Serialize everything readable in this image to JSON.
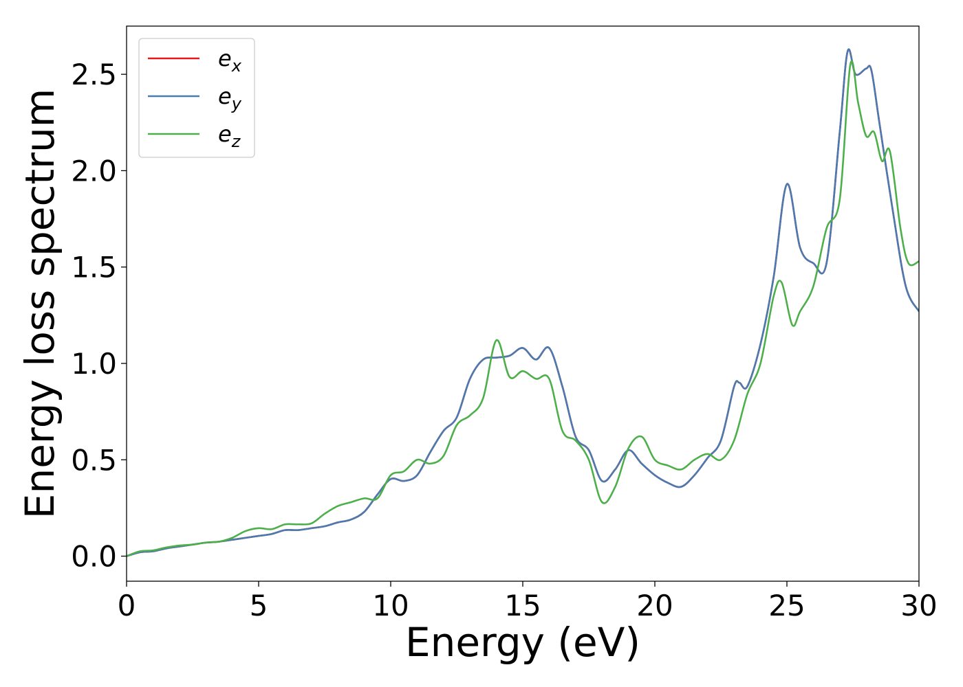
{
  "chart_data": {
    "type": "line",
    "title": "",
    "xlabel": "Energy (eV)",
    "ylabel": "Energy loss spectrum",
    "xlim": [
      0,
      30
    ],
    "ylim": [
      -0.13,
      2.75
    ],
    "xticks": [
      0,
      5,
      10,
      15,
      20,
      25,
      30
    ],
    "xtick_labels": [
      "0",
      "5",
      "10",
      "15",
      "20",
      "25",
      "30"
    ],
    "yticks": [
      0.0,
      0.5,
      1.0,
      1.5,
      2.0,
      2.5
    ],
    "ytick_labels": [
      "0.0",
      "0.5",
      "1.0",
      "1.5",
      "2.0",
      "2.5"
    ],
    "grid": false,
    "legend_position": "top-left",
    "series": [
      {
        "name": "e",
        "subscript": "x",
        "color": "#e41a1c",
        "x": [
          0,
          0.5,
          1,
          1.5,
          2,
          2.5,
          3,
          3.5,
          4,
          4.5,
          5,
          5.5,
          6,
          6.5,
          7,
          7.5,
          8,
          8.5,
          9,
          9.5,
          10,
          10.5,
          11,
          11.5,
          12,
          12.5,
          13,
          13.5,
          14,
          14.5,
          15,
          15.5,
          16,
          16.5,
          17,
          17.5,
          18,
          18.5,
          19,
          19.5,
          20,
          20.5,
          21,
          21.5,
          22,
          22.5,
          23,
          23.2,
          23.5,
          24,
          24.5,
          25,
          25.5,
          26,
          26.5,
          27,
          27.3,
          27.6,
          28,
          28.2,
          28.5,
          29,
          29.5,
          30
        ],
        "y": [
          0,
          0.02,
          0.025,
          0.04,
          0.05,
          0.06,
          0.07,
          0.075,
          0.085,
          0.095,
          0.105,
          0.115,
          0.135,
          0.135,
          0.145,
          0.155,
          0.175,
          0.19,
          0.23,
          0.32,
          0.4,
          0.39,
          0.42,
          0.54,
          0.65,
          0.72,
          0.92,
          1.02,
          1.03,
          1.04,
          1.08,
          1.02,
          1.08,
          0.88,
          0.62,
          0.55,
          0.39,
          0.45,
          0.55,
          0.48,
          0.42,
          0.38,
          0.36,
          0.42,
          0.51,
          0.6,
          0.88,
          0.9,
          0.88,
          1.1,
          1.45,
          1.93,
          1.6,
          1.52,
          1.52,
          2.2,
          2.62,
          2.5,
          2.53,
          2.52,
          2.25,
          1.8,
          1.4,
          1.27
        ]
      },
      {
        "name": "e",
        "subscript": "y",
        "color": "#4a7ab0",
        "x": [
          0,
          0.5,
          1,
          1.5,
          2,
          2.5,
          3,
          3.5,
          4,
          4.5,
          5,
          5.5,
          6,
          6.5,
          7,
          7.5,
          8,
          8.5,
          9,
          9.5,
          10,
          10.5,
          11,
          11.5,
          12,
          12.5,
          13,
          13.5,
          14,
          14.5,
          15,
          15.5,
          16,
          16.5,
          17,
          17.5,
          18,
          18.5,
          19,
          19.5,
          20,
          20.5,
          21,
          21.5,
          22,
          22.5,
          23,
          23.2,
          23.5,
          24,
          24.5,
          25,
          25.5,
          26,
          26.5,
          27,
          27.3,
          27.6,
          28,
          28.2,
          28.5,
          29,
          29.5,
          30
        ],
        "y": [
          0,
          0.02,
          0.025,
          0.04,
          0.05,
          0.06,
          0.07,
          0.075,
          0.085,
          0.095,
          0.105,
          0.115,
          0.135,
          0.135,
          0.145,
          0.155,
          0.175,
          0.19,
          0.23,
          0.32,
          0.4,
          0.39,
          0.42,
          0.54,
          0.65,
          0.72,
          0.92,
          1.02,
          1.03,
          1.04,
          1.08,
          1.02,
          1.08,
          0.88,
          0.62,
          0.55,
          0.39,
          0.45,
          0.55,
          0.48,
          0.42,
          0.38,
          0.36,
          0.42,
          0.51,
          0.6,
          0.88,
          0.9,
          0.88,
          1.1,
          1.45,
          1.93,
          1.6,
          1.52,
          1.52,
          2.2,
          2.62,
          2.5,
          2.53,
          2.52,
          2.25,
          1.8,
          1.4,
          1.27
        ]
      },
      {
        "name": "e",
        "subscript": "z",
        "color": "#4daf4a",
        "x": [
          0,
          0.5,
          1,
          1.5,
          2,
          2.5,
          3,
          3.5,
          4,
          4.5,
          5,
          5.5,
          6,
          6.5,
          7,
          7.5,
          8,
          8.5,
          9,
          9.5,
          10,
          10.5,
          11,
          11.5,
          12,
          12.5,
          13,
          13.5,
          14,
          14.5,
          15,
          15.5,
          16,
          16.5,
          17,
          17.5,
          18,
          18.5,
          19,
          19.5,
          20,
          20.5,
          21,
          21.5,
          22,
          22.5,
          23,
          23.5,
          24,
          24.5,
          24.8,
          25.2,
          25.5,
          26,
          26.5,
          27,
          27.4,
          27.7,
          28,
          28.3,
          28.6,
          28.9,
          29.3,
          29.6,
          30
        ],
        "y": [
          0,
          0.025,
          0.03,
          0.045,
          0.055,
          0.06,
          0.07,
          0.075,
          0.095,
          0.13,
          0.145,
          0.14,
          0.165,
          0.165,
          0.17,
          0.22,
          0.26,
          0.28,
          0.3,
          0.3,
          0.42,
          0.44,
          0.5,
          0.48,
          0.52,
          0.68,
          0.73,
          0.82,
          1.12,
          0.93,
          0.96,
          0.92,
          0.92,
          0.65,
          0.6,
          0.5,
          0.28,
          0.36,
          0.56,
          0.62,
          0.5,
          0.47,
          0.45,
          0.5,
          0.53,
          0.5,
          0.6,
          0.84,
          1.0,
          1.35,
          1.42,
          1.2,
          1.27,
          1.4,
          1.7,
          1.85,
          2.55,
          2.35,
          2.18,
          2.2,
          2.05,
          2.1,
          1.7,
          1.52,
          1.53
        ]
      }
    ]
  }
}
